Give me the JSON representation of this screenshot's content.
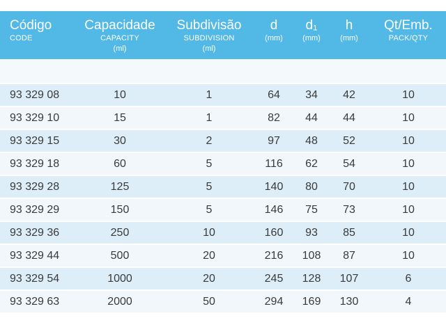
{
  "header": {
    "code": {
      "main": "Código",
      "sub": "CODE"
    },
    "capacity": {
      "main": "Capacidade",
      "sub": "CAPACITY",
      "unit": "(ml)"
    },
    "subdivision": {
      "main": "Subdivisão",
      "sub": "SUBDIVISION",
      "unit": "(ml)"
    },
    "d": {
      "main": "d",
      "unit": "(mm)"
    },
    "d1": {
      "main": "d₁",
      "unit": "(mm)"
    },
    "h": {
      "main": "h",
      "unit": "(mm)"
    },
    "qty": {
      "main": "Qt/Emb.",
      "sub": "PACK/QTY"
    }
  },
  "rows": [
    {
      "code": "93 329 08",
      "capacity": "10",
      "subdivision": "1",
      "d": "64",
      "d1": "34",
      "h": "42",
      "qty": "10"
    },
    {
      "code": "93 329 10",
      "capacity": "15",
      "subdivision": "1",
      "d": "82",
      "d1": "44",
      "h": "44",
      "qty": "10"
    },
    {
      "code": "93 329 15",
      "capacity": "30",
      "subdivision": "2",
      "d": "97",
      "d1": "48",
      "h": "52",
      "qty": "10"
    },
    {
      "code": "93 329 18",
      "capacity": "60",
      "subdivision": "5",
      "d": "116",
      "d1": "62",
      "h": "54",
      "qty": "10"
    },
    {
      "code": "93 329 28",
      "capacity": "125",
      "subdivision": "5",
      "d": "140",
      "d1": "80",
      "h": "70",
      "qty": "10"
    },
    {
      "code": "93 329 29",
      "capacity": "150",
      "subdivision": "5",
      "d": "146",
      "d1": "75",
      "h": "73",
      "qty": "10"
    },
    {
      "code": "93 329 36",
      "capacity": "250",
      "subdivision": "10",
      "d": "160",
      "d1": "93",
      "h": "85",
      "qty": "10"
    },
    {
      "code": "93 329 44",
      "capacity": "500",
      "subdivision": "20",
      "d": "216",
      "d1": "108",
      "h": "87",
      "qty": "10"
    },
    {
      "code": "93 329 54",
      "capacity": "1000",
      "subdivision": "20",
      "d": "245",
      "d1": "128",
      "h": "107",
      "qty": "6"
    },
    {
      "code": "93 329 63",
      "capacity": "2000",
      "subdivision": "50",
      "d": "294",
      "d1": "169",
      "h": "130",
      "qty": "4"
    }
  ],
  "colors": {
    "header_bg": "#52b8e6",
    "row_odd": "#ddeef8",
    "row_even": "#f1f7fb",
    "text": "#3a3a3a"
  }
}
